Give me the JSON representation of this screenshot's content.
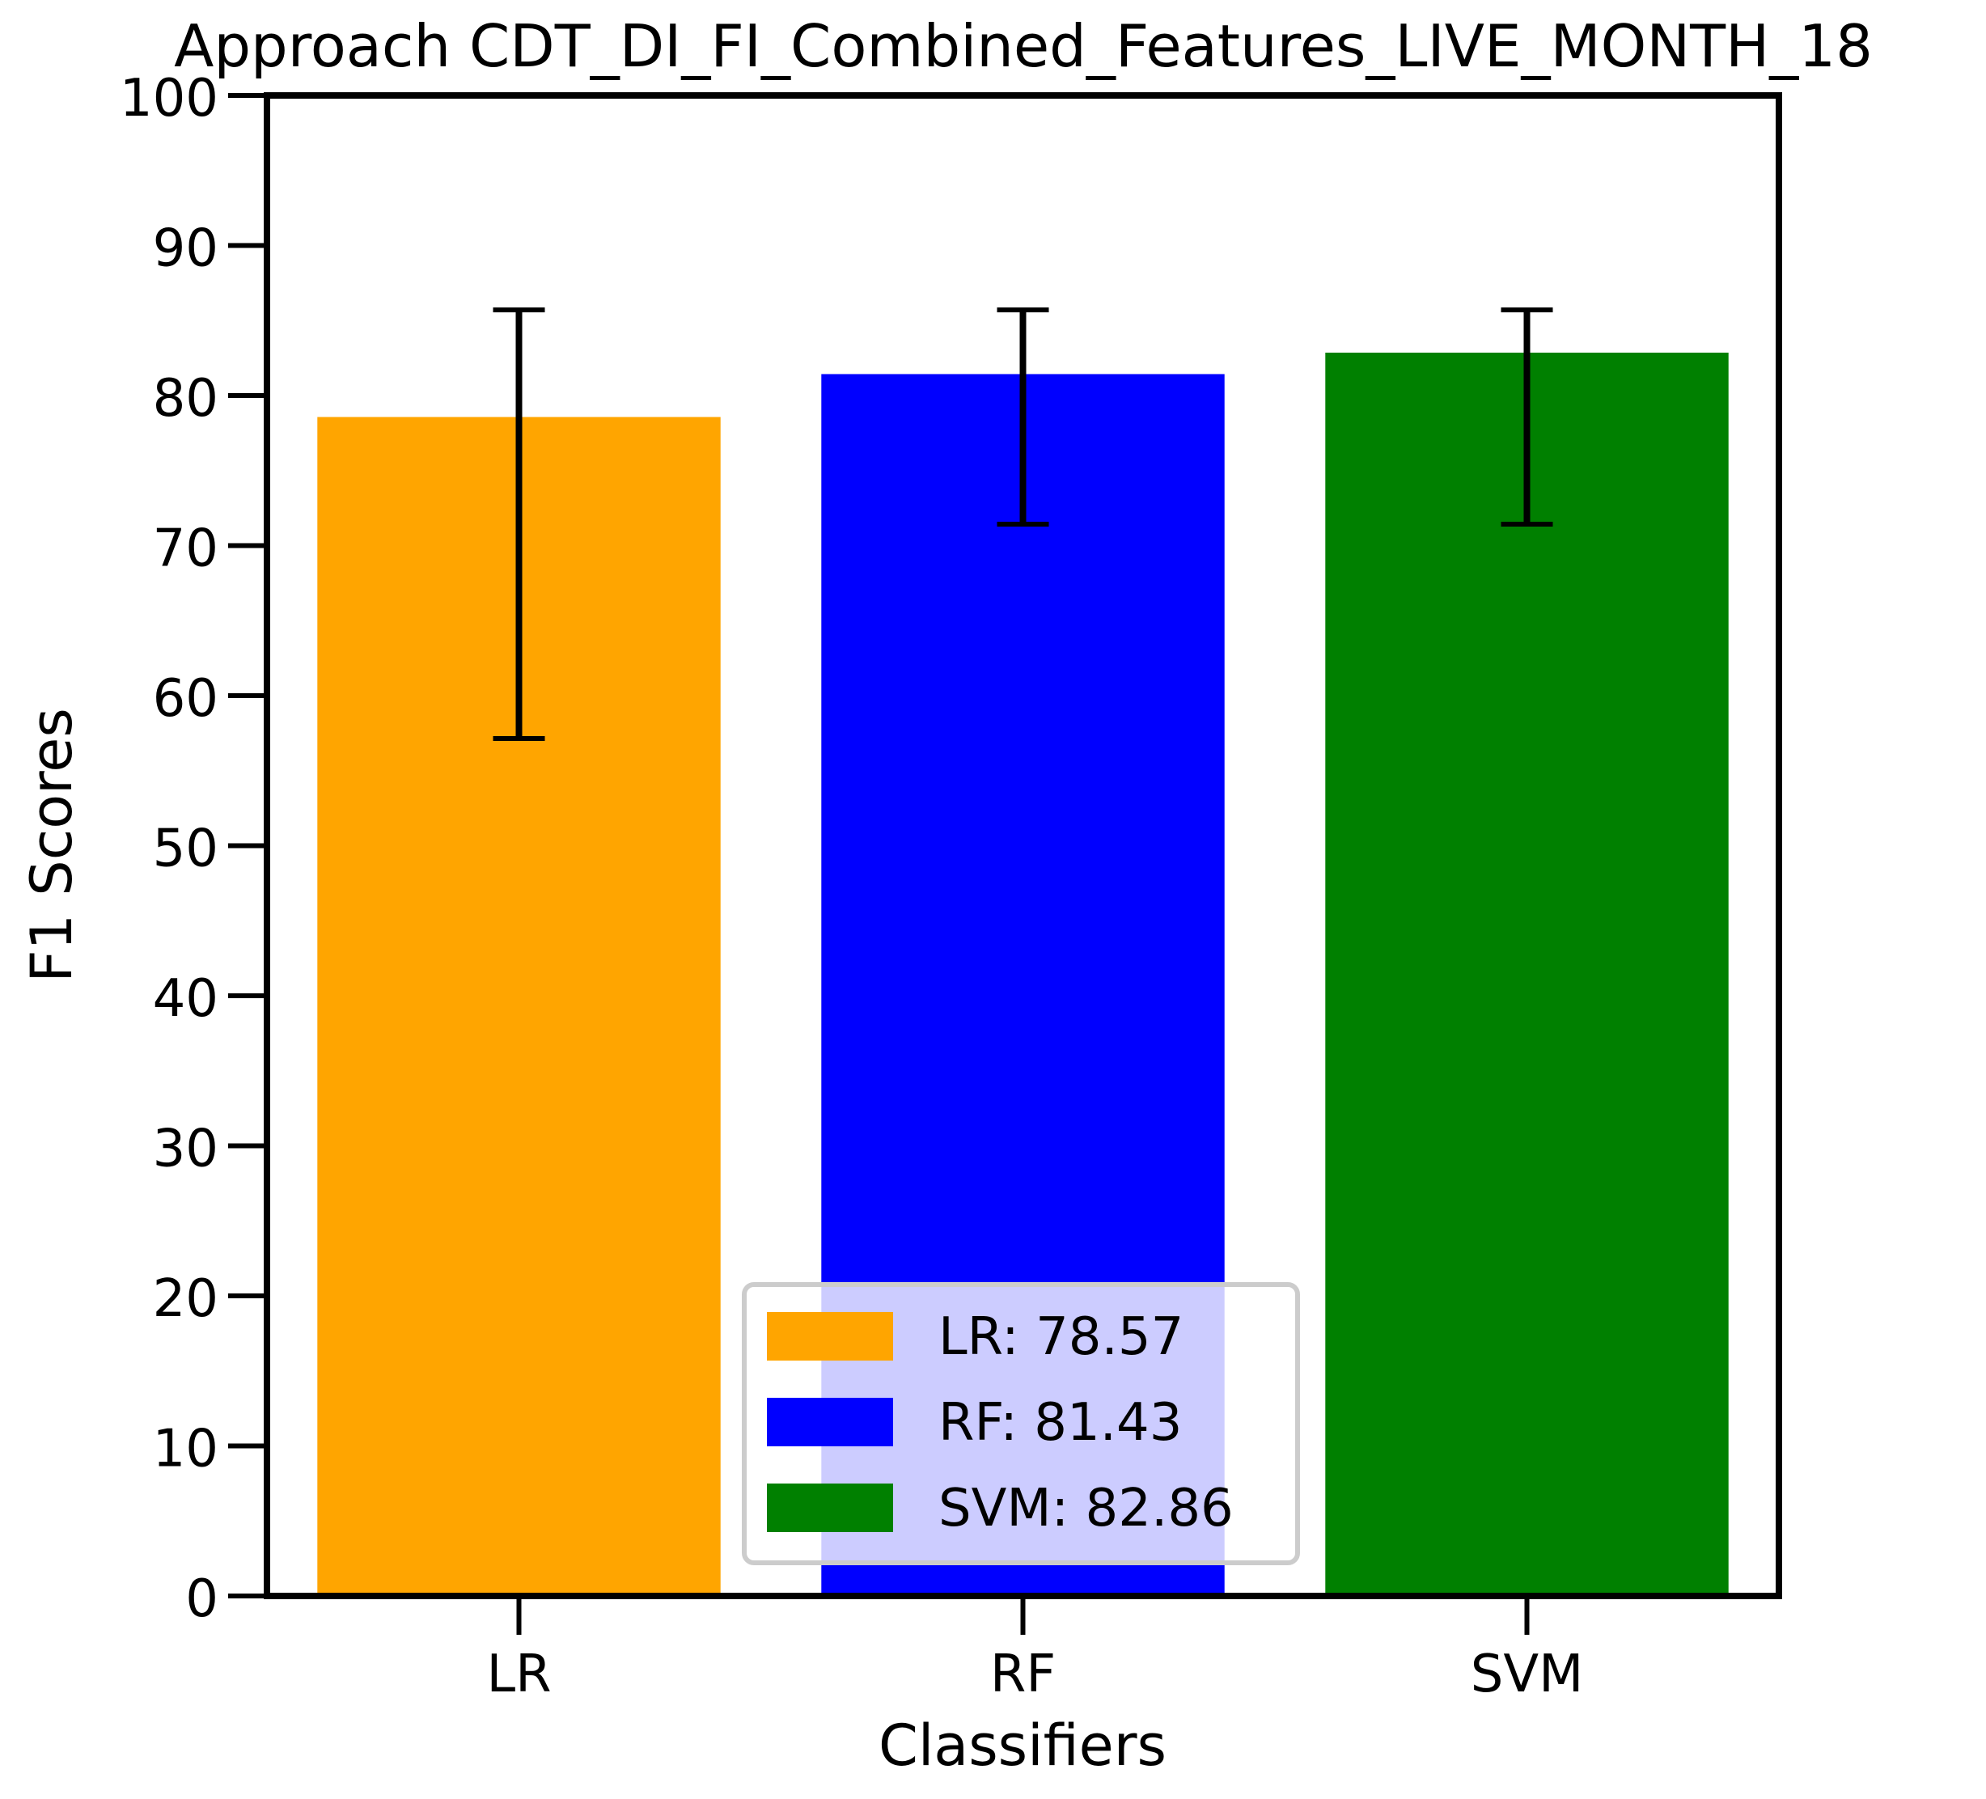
{
  "chart_data": {
    "type": "bar",
    "title": "Approach CDT_DI_FI_Combined_Features_LIVE_MONTH_18",
    "xlabel": "Classifiers",
    "ylabel": "F1 Scores",
    "ylim": [
      0,
      100
    ],
    "yticks": [
      0,
      10,
      20,
      30,
      40,
      50,
      60,
      70,
      80,
      90,
      100
    ],
    "categories": [
      "LR",
      "RF",
      "SVM"
    ],
    "values": [
      78.57,
      81.43,
      82.86
    ],
    "error_low": [
      57.14,
      71.43,
      71.43
    ],
    "error_high": [
      85.71,
      85.71,
      85.71
    ],
    "colors": [
      "#FFA500",
      "#0000FF",
      "#008000"
    ],
    "legend": {
      "placement": "lower-center",
      "entries": [
        "LR: 78.57",
        "RF: 81.43",
        "SVM: 82.86"
      ]
    }
  }
}
